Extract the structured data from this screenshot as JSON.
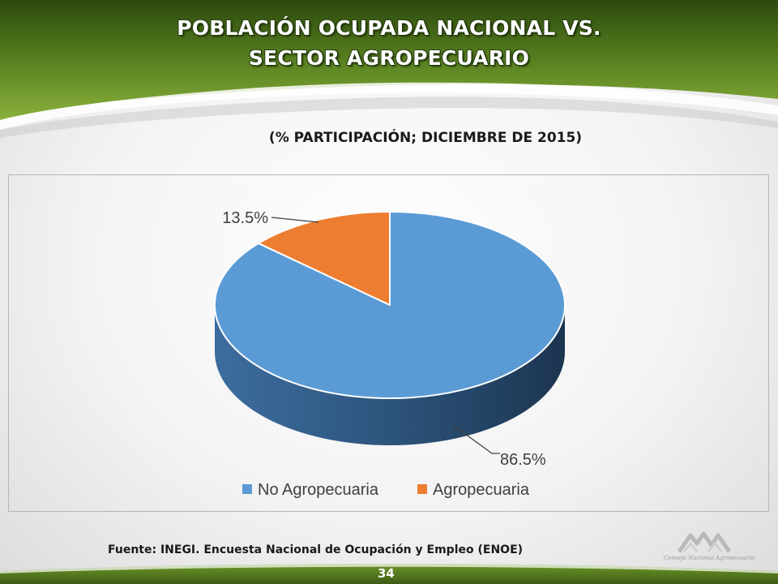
{
  "title": {
    "line1": "POBLACIÓN OCUPADA NACIONAL VS.",
    "line2": "SECTOR AGROPECUARIO"
  },
  "subtitle": "(% PARTICIPACIÓN;  DICIEMBRE DE 2015)",
  "source": "Fuente: INEGI. Encuesta Nacional de Ocupación y Empleo (ENOE)",
  "page_number": "34",
  "logo_text": "Consejo Nacional Agropecuario",
  "colors": {
    "header_green_dark": "#3d5a14",
    "header_green_light": "#6e9a2a",
    "series_no_agro": "#5b9bd5",
    "series_agro": "#ed7d31"
  },
  "chart_data": {
    "type": "pie",
    "style": "3d",
    "categories": [
      "No Agropecuaria",
      "Agropecuaria"
    ],
    "values": [
      86.5,
      13.5
    ],
    "data_labels": [
      "86.5%",
      "13.5%"
    ],
    "legend": [
      "No Agropecuaria",
      "Agropecuaria"
    ],
    "legend_position": "bottom",
    "colors": [
      "#5b9bd5",
      "#ed7d31"
    ]
  }
}
